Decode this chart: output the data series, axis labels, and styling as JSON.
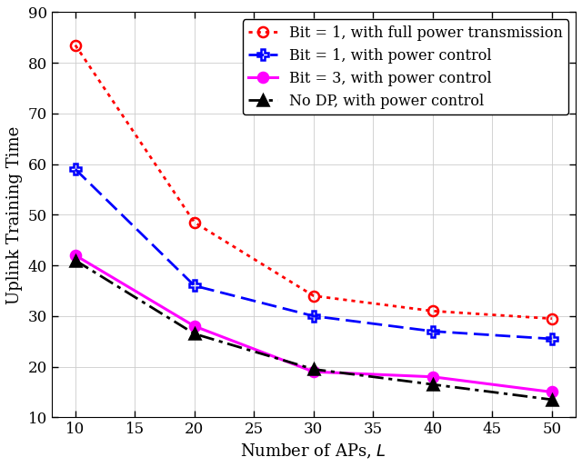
{
  "x": [
    10,
    20,
    30,
    40,
    50
  ],
  "series": [
    {
      "label": "Bit = 1, with full power transmission",
      "y": [
        83.5,
        48.5,
        34.0,
        31.0,
        29.5
      ],
      "color": "#ff0000",
      "linestyle": "dotted",
      "marker": "o",
      "markersize": 8,
      "markerfilled": false,
      "linewidth": 2.0
    },
    {
      "label": "Bit = 1, with power control",
      "y": [
        59.0,
        36.0,
        30.0,
        27.0,
        25.5
      ],
      "color": "#0000ff",
      "linestyle": "dashed",
      "marker": "P",
      "markersize": 9,
      "markerfilled": false,
      "linewidth": 2.0
    },
    {
      "label": "Bit = 3, with power control",
      "y": [
        42.0,
        28.0,
        19.0,
        18.0,
        15.0
      ],
      "color": "#ff00ff",
      "linestyle": "solid",
      "marker": "o",
      "markersize": 8,
      "markerfilled": true,
      "linewidth": 2.2
    },
    {
      "label": "No DP, with power control",
      "y": [
        41.0,
        26.5,
        19.5,
        16.5,
        13.5
      ],
      "color": "#000000",
      "linestyle": "dashdot",
      "marker": "^",
      "markersize": 8,
      "markerfilled": true,
      "linewidth": 2.0
    }
  ],
  "xlabel": "Number of APs, $L$",
  "ylabel": "Uplink Training Time",
  "xlim": [
    8,
    52
  ],
  "ylim": [
    10,
    90
  ],
  "xticks": [
    10,
    15,
    20,
    25,
    30,
    35,
    40,
    45,
    50
  ],
  "yticks": [
    10,
    20,
    30,
    40,
    50,
    60,
    70,
    80,
    90
  ],
  "grid": true,
  "legend_loc": "upper right",
  "label_fontsize": 13,
  "tick_fontsize": 12,
  "legend_fontsize": 11.5,
  "figsize": [
    6.4,
    5.14
  ],
  "dpi": 100
}
